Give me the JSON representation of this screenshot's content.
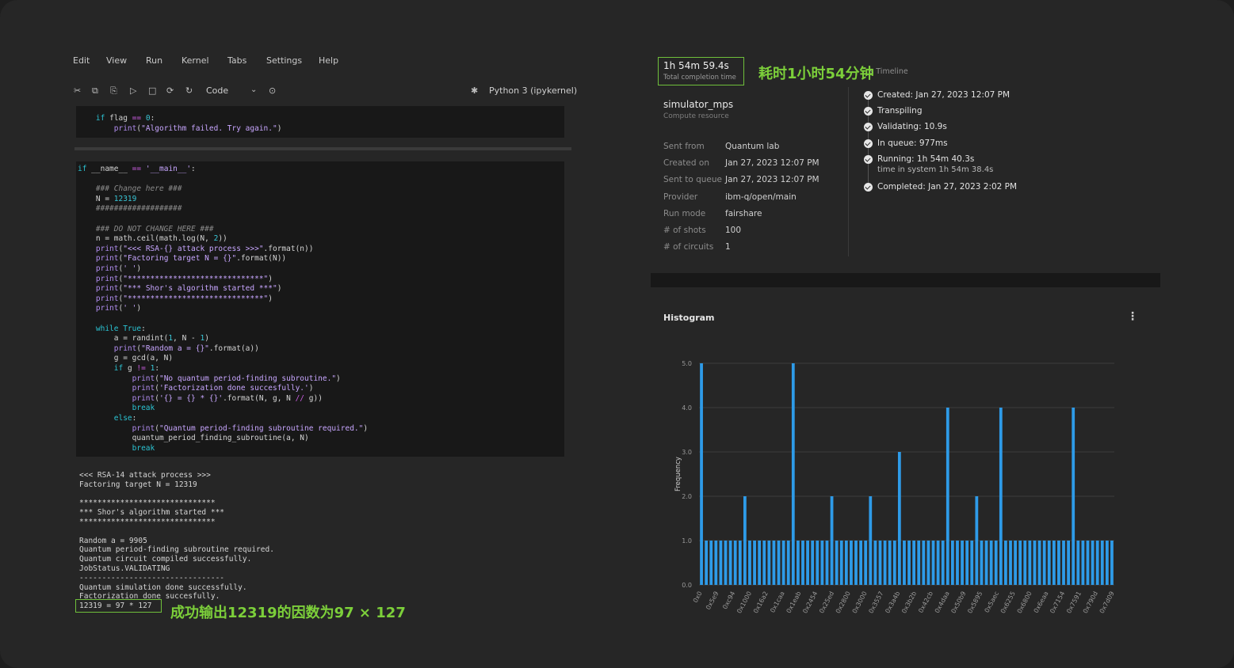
{
  "menu": [
    "Edit",
    "View",
    "Run",
    "Kernel",
    "Tabs",
    "Settings",
    "Help"
  ],
  "toolbar": {
    "cell_type": "Code",
    "kernel": "Python 3 (ipykernel)",
    "icons": [
      "cut-icon",
      "copy-icon",
      "paste-icon",
      "run-icon",
      "stop-icon",
      "restart-icon",
      "refresh-icon",
      "chevron-down-icon",
      "run-all-icon",
      "debug-icon"
    ]
  },
  "cell1": [
    "    if flag == 0:",
    "        print(\"Algorithm failed. Try again.\")"
  ],
  "cell2": [
    "if __name__ == '__main__':",
    "",
    "    ### Change here ###",
    "    N = 12319",
    "    ###################",
    "",
    "    ### DO NOT CHANGE HERE ###",
    "    n = math.ceil(math.log(N, 2))",
    "    print(\"<<< RSA-{} attack process >>>\".format(n))",
    "    print(\"Factoring target N = {}\".format(N))",
    "    print(' ')",
    "    print(\"******************************\")",
    "    print(\"*** Shor's algorithm started ***\")",
    "    print(\"******************************\")",
    "    print(' ')",
    "",
    "    while True:",
    "        a = randint(1, N - 1)",
    "        print(\"Random a = {}\".format(a))",
    "        g = gcd(a, N)",
    "        if g != 1:",
    "            print(\"No quantum period-finding subroutine.\")",
    "            print('Factorization done succesfully.')",
    "            print('{} = {} * {}'.format(N, g, N // g))",
    "            break",
    "        else:",
    "            print(\"Quantum period-finding subroutine required.\")",
    "            quantum_period_finding_subroutine(a, N)",
    "            break"
  ],
  "output": [
    "<<< RSA-14 attack process >>>",
    "Factoring target N = 12319",
    "",
    "******************************",
    "*** Shor's algorithm started ***",
    "******************************",
    "",
    "Random a = 9905",
    "Quantum period-finding subroutine required.",
    "Quantum circuit compiled successfully.",
    "JobStatus.VALIDATING",
    "--------------------------------",
    "Quantum simulation done successfully.",
    "Factorization done succesfully.",
    "12319 = 97 * 127"
  ],
  "annotation_result": "成功输出12319的因数为97 × 127",
  "annotation_time": "耗时1小时54分钟",
  "job": {
    "total_time": "1h 54m 59.4s",
    "total_time_label": "Total completion time",
    "timeline_title": "Status Timeline",
    "resource": "simulator_mps",
    "resource_label": "Compute resource",
    "details": [
      {
        "label": "Sent from",
        "value": "Quantum lab"
      },
      {
        "label": "Created on",
        "value": "Jan 27, 2023 12:07 PM"
      },
      {
        "label": "Sent to queue",
        "value": "Jan 27, 2023 12:07 PM"
      },
      {
        "label": "Provider",
        "value": "ibm-q/open/main"
      },
      {
        "label": "Run mode",
        "value": "fairshare"
      },
      {
        "label": "# of shots",
        "value": "100"
      },
      {
        "label": "# of circuits",
        "value": "1"
      }
    ],
    "timeline": [
      {
        "text": "Created: Jan 27, 2023 12:07 PM"
      },
      {
        "text": "Transpiling"
      },
      {
        "text": "Validating: 10.9s"
      },
      {
        "text": "In queue: 977ms"
      },
      {
        "text": "Running: 1h 54m 40.3s",
        "sub": "time in system 1h 54m 38.4s"
      },
      {
        "text": "Completed: Jan 27, 2023 2:02 PM"
      }
    ]
  },
  "histogram_title": "Histogram",
  "chart_data": {
    "type": "bar",
    "ylabel": "Frequency",
    "ylim": [
      0,
      5
    ],
    "yticks": [
      "0.0",
      "1.0",
      "2.0",
      "3.0",
      "4.0",
      "5.0"
    ],
    "tick_labels": [
      "0x0",
      "0x5e9",
      "0xc94",
      "0x1000",
      "0x16a2",
      "0x1caa",
      "0x1eab",
      "0x2454",
      "0x25ed",
      "0x2800",
      "0x3000",
      "0x3557",
      "0x3a4b",
      "0x3b2b",
      "0x42cb",
      "0x4daa",
      "0x50b9",
      "0x5895",
      "0x5aec",
      "0x6255",
      "0x6800",
      "0x6eaa",
      "0x7154",
      "0x7591",
      "0x790d",
      "0x7d09"
    ],
    "values": [
      5,
      1,
      1,
      1,
      1,
      1,
      1,
      1,
      1,
      2,
      1,
      1,
      1,
      1,
      1,
      1,
      1,
      1,
      1,
      5,
      1,
      1,
      1,
      1,
      1,
      1,
      1,
      2,
      1,
      1,
      1,
      1,
      1,
      1,
      1,
      2,
      1,
      1,
      1,
      1,
      1,
      3,
      1,
      1,
      1,
      1,
      1,
      1,
      1,
      1,
      1,
      4,
      1,
      1,
      1,
      1,
      1,
      2,
      1,
      1,
      1,
      1,
      4,
      1,
      1,
      1,
      1,
      1,
      1,
      1,
      1,
      1,
      1,
      1,
      1,
      1,
      1,
      4,
      1,
      1,
      1,
      1,
      1,
      1,
      1,
      1
    ],
    "color": "#2e9be8"
  }
}
